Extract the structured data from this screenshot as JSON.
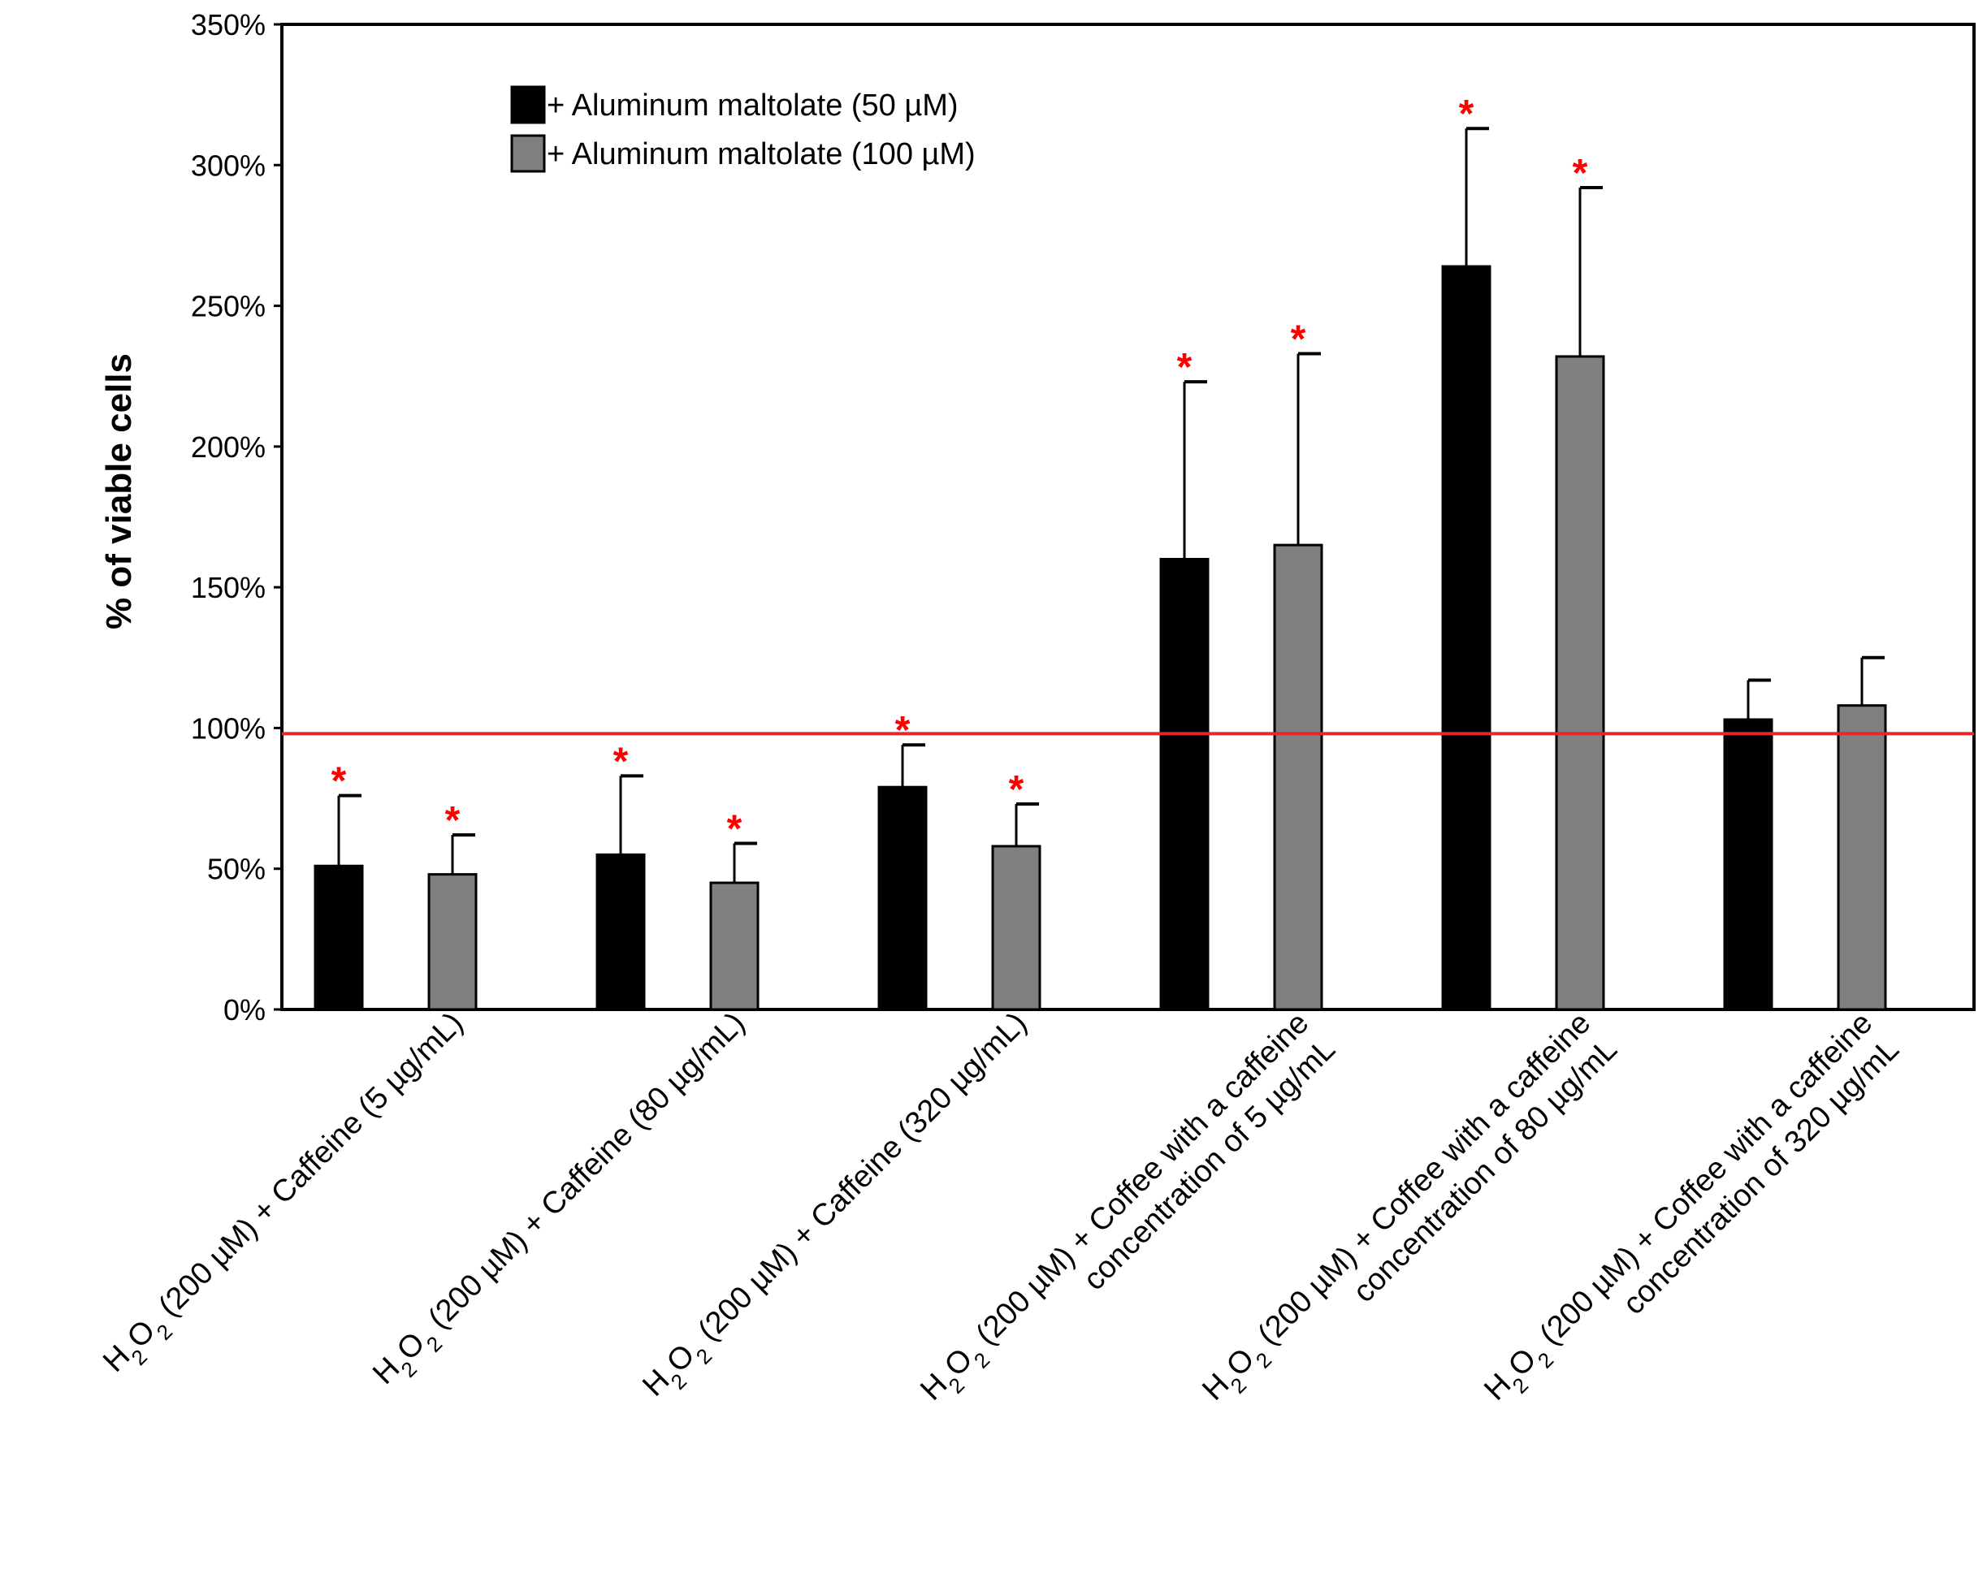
{
  "chart_data": {
    "type": "bar",
    "title": "",
    "xlabel": "",
    "ylabel": "% of viable cells",
    "ylim": [
      0,
      350
    ],
    "y_ticks": [
      "0%",
      "50%",
      "100%",
      "150%",
      "200%",
      "250%",
      "300%",
      "350%"
    ],
    "y_tick_values": [
      0,
      50,
      100,
      150,
      200,
      250,
      300,
      350
    ],
    "reference_line": {
      "value": 98,
      "color": "#e8252b"
    },
    "categories": [
      {
        "prefix": "H",
        "sub": "2",
        "mid": "O",
        "sub2": "2",
        "line1": " (200 µM) + Caffeine (5 µg/mL)",
        "line2": ""
      },
      {
        "prefix": "H",
        "sub": "2",
        "mid": "O",
        "sub2": "2",
        "line1": " (200 µM) + Caffeine (80 µg/mL)",
        "line2": ""
      },
      {
        "prefix": "H",
        "sub": "2",
        "mid": "O",
        "sub2": "2",
        "line1": " (200 µM) + Caffeine (320 µg/mL)",
        "line2": ""
      },
      {
        "prefix": "H",
        "sub": "2",
        "mid": "O",
        "sub2": "2",
        "line1": " (200 µM) + Coffee with a caffeine",
        "line2": "concentration of 5 µg/mL"
      },
      {
        "prefix": "H",
        "sub": "2",
        "mid": "O",
        "sub2": "2",
        "line1": " (200 µM) + Coffee with a caffeine",
        "line2": "concentration of 80 µg/mL"
      },
      {
        "prefix": "H",
        "sub": "2",
        "mid": "O",
        "sub2": "2",
        "line1": " (200 µM) + Coffee with a caffeine",
        "line2": "concentration of 320 µg/mL"
      }
    ],
    "series": [
      {
        "name": "+ Aluminum maltolate (50 µM)",
        "color": "#000000",
        "values": [
          51,
          55,
          79,
          160,
          264,
          103
        ],
        "errors": [
          25,
          28,
          15,
          63,
          49,
          14
        ],
        "significant": [
          true,
          true,
          true,
          true,
          true,
          false
        ]
      },
      {
        "name": "+ Aluminum maltolate (100 µM)",
        "color": "#808080",
        "values": [
          48,
          45,
          58,
          165,
          232,
          108
        ],
        "errors": [
          14,
          14,
          15,
          68,
          60,
          17
        ],
        "significant": [
          true,
          true,
          true,
          true,
          true,
          false
        ]
      }
    ],
    "significance_marker": "*",
    "legend_position": "top-left",
    "grid": false
  }
}
